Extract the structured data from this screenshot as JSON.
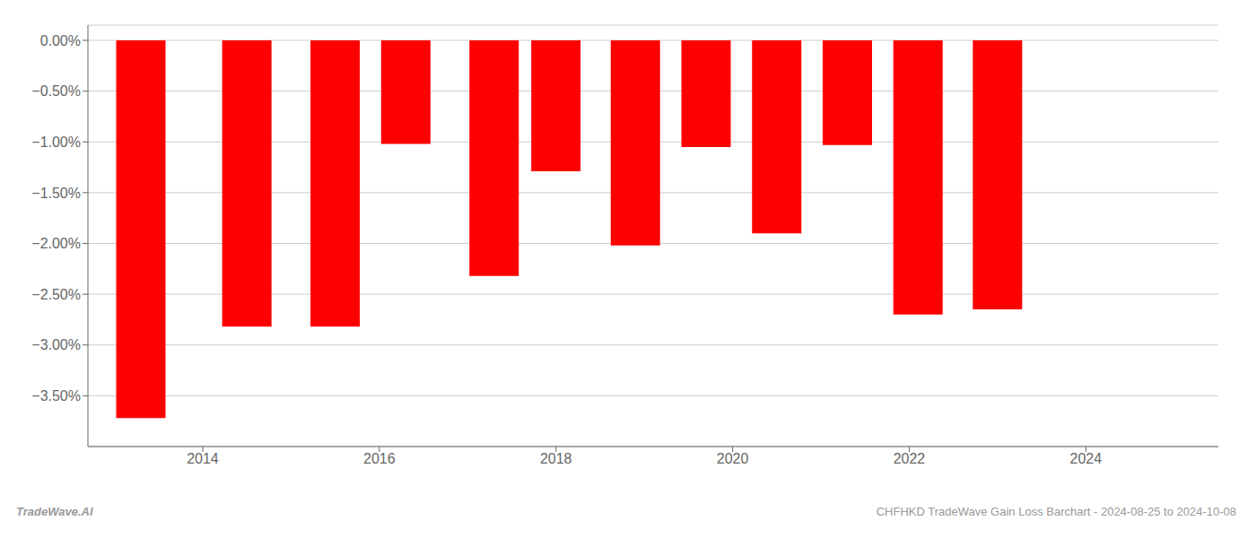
{
  "chart_data": {
    "type": "bar",
    "x": [
      2013.3,
      2014.5,
      2015.5,
      2016.3,
      2017.3,
      2018.0,
      2018.9,
      2019.7,
      2020.5,
      2021.3,
      2022.1,
      2023.0
    ],
    "values": [
      -3.72,
      -2.82,
      -2.82,
      -1.02,
      -2.32,
      -1.29,
      -2.02,
      -1.05,
      -1.9,
      -1.03,
      -2.7,
      -2.65
    ],
    "color": "#ff0000",
    "xlim": [
      2012.7,
      2025.5
    ],
    "xticks": [
      2014,
      2016,
      2018,
      2020,
      2022,
      2024
    ],
    "ylim": [
      -4.0,
      0.15
    ],
    "yticks": [
      {
        "value": 0.0,
        "label": "0.00%"
      },
      {
        "value": -0.5,
        "label": "−0.50%"
      },
      {
        "value": -1.0,
        "label": "−1.00%"
      },
      {
        "value": -1.5,
        "label": "−1.50%"
      },
      {
        "value": -2.0,
        "label": "−2.00%"
      },
      {
        "value": -2.5,
        "label": "−2.50%"
      },
      {
        "value": -3.0,
        "label": "−3.00%"
      },
      {
        "value": -3.5,
        "label": "−3.50%"
      }
    ],
    "grid": true,
    "annotations": [
      "TradeWave.AI",
      "CHFHKD TradeWave Gain Loss Barchart - 2024-08-25 to 2024-10-08"
    ]
  }
}
